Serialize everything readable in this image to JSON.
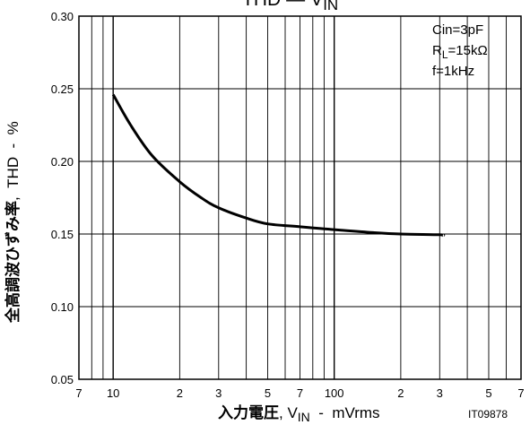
{
  "chart_data": {
    "type": "line",
    "title": "THD - VIN",
    "title_parts": {
      "main": "THD",
      "dash": "—",
      "v": "V",
      "sub": "IN"
    },
    "xlabel": "入力電圧, VIN - mVrms",
    "xlabel_parts": {
      "jp": "入力電圧",
      "sep": ", ",
      "v": "V",
      "sub": "IN",
      "rest": "  -  mVrms"
    },
    "ylabel": "全高調波ひずみ率, THD - %",
    "ylabel_parts": {
      "jp": "全高調波ひずみ率",
      "rest": ",  THD  -  %"
    },
    "x_scale": "log",
    "xlim": [
      7,
      700
    ],
    "ylim": [
      0.05,
      0.3
    ],
    "grid": true,
    "x_ticks": [
      {
        "value": 7,
        "label": "7"
      },
      {
        "value": 10,
        "label": "10"
      },
      {
        "value": 20,
        "label": "2"
      },
      {
        "value": 30,
        "label": "3"
      },
      {
        "value": 50,
        "label": "5"
      },
      {
        "value": 70,
        "label": "7"
      },
      {
        "value": 100,
        "label": "100"
      },
      {
        "value": 200,
        "label": "2"
      },
      {
        "value": 300,
        "label": "3"
      },
      {
        "value": 500,
        "label": "5"
      },
      {
        "value": 700,
        "label": "7"
      }
    ],
    "x_minor": [
      8,
      9,
      40,
      60,
      80,
      90,
      400,
      600
    ],
    "y_ticks": [
      {
        "value": 0.05,
        "label": "0.05"
      },
      {
        "value": 0.1,
        "label": "0.10"
      },
      {
        "value": 0.15,
        "label": "0.15"
      },
      {
        "value": 0.2,
        "label": "0.20"
      },
      {
        "value": 0.25,
        "label": "0.25"
      },
      {
        "value": 0.3,
        "label": "0.30"
      }
    ],
    "conditions": [
      {
        "main": "Cin=3pF",
        "sub": "",
        "rest": ""
      },
      {
        "main": "R",
        "sub": "L",
        "rest": "=15kΩ"
      },
      {
        "main": "f=1kHz",
        "sub": "",
        "rest": ""
      }
    ],
    "series": [
      {
        "x": [
          10,
          12,
          15,
          20,
          25,
          30,
          40,
          50,
          70,
          100,
          150,
          200,
          300,
          310
        ],
        "y": [
          0.246,
          0.225,
          0.204,
          0.186,
          0.175,
          0.168,
          0.161,
          0.157,
          0.155,
          0.153,
          0.151,
          0.15,
          0.1495,
          0.149
        ]
      }
    ],
    "figure_id": "IT09878"
  }
}
